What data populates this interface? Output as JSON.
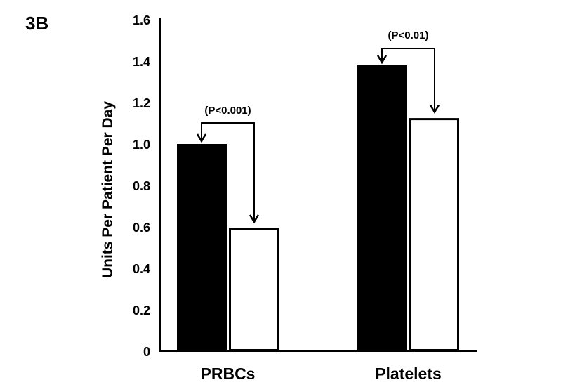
{
  "panel_label": "3B",
  "chart_data": {
    "type": "bar",
    "title": "",
    "xlabel": "",
    "ylabel": "Units Per Patient Per Day",
    "ylim": [
      0,
      1.6
    ],
    "yticks": [
      "0",
      "0.2",
      "0.4",
      "0.6",
      "0.8",
      "1.0",
      "1.2",
      "1.4",
      "1.6"
    ],
    "ytick_values": [
      0,
      0.2,
      0.4,
      0.6,
      0.8,
      1.0,
      1.2,
      1.4,
      1.6
    ],
    "categories": [
      "PRBCs",
      "Platelets"
    ],
    "series": [
      {
        "name": "black",
        "color": "#000000",
        "values": [
          1.0,
          1.38
        ]
      },
      {
        "name": "white",
        "color": "#ffffff",
        "values": [
          0.59,
          1.12
        ]
      }
    ],
    "annotations": [
      "(P<0.001)",
      "(P<0.01)"
    ],
    "grid": false
  }
}
